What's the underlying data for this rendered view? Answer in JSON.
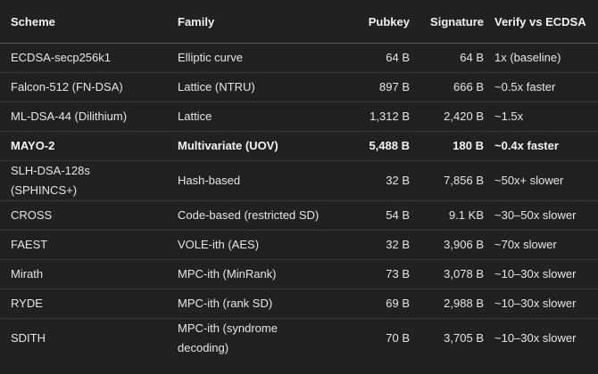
{
  "table": {
    "headers": {
      "scheme": "Scheme",
      "family": "Family",
      "pubkey": "Pubkey",
      "signature": "Signature",
      "verify": "Verify vs ECDSA"
    },
    "rows": [
      {
        "scheme": "ECDSA-secp256k1",
        "family": "Elliptic curve",
        "pubkey": "64 B",
        "signature": "64 B",
        "verify": "1x (baseline)",
        "bold": false
      },
      {
        "scheme": "Falcon-512 (FN-DSA)",
        "family": "Lattice (NTRU)",
        "pubkey": "897 B",
        "signature": "666 B",
        "verify": "~0.5x faster",
        "bold": false
      },
      {
        "scheme": "ML-DSA-44 (Dilithium)",
        "family": "Lattice",
        "pubkey": "1,312 B",
        "signature": "2,420 B",
        "verify": "~1.5x",
        "bold": false
      },
      {
        "scheme": "MAYO-2",
        "family": "Multivariate (UOV)",
        "pubkey": "5,488 B",
        "signature": "180 B",
        "verify": "~0.4x faster",
        "bold": true
      },
      {
        "scheme": "SLH-DSA-128s (SPHINCS+)",
        "family": "Hash-based",
        "pubkey": "32 B",
        "signature": "7,856 B",
        "verify": "~50x+ slower",
        "bold": false
      },
      {
        "scheme": "CROSS",
        "family": "Code-based (restricted SD)",
        "pubkey": "54 B",
        "signature": "9.1 KB",
        "verify": "~30–50x slower",
        "bold": false
      },
      {
        "scheme": "FAEST",
        "family": "VOLE-ith (AES)",
        "pubkey": "32 B",
        "signature": "3,906 B",
        "verify": "~70x slower",
        "bold": false
      },
      {
        "scheme": "Mirath",
        "family": "MPC-ith (MinRank)",
        "pubkey": "73 B",
        "signature": "3,078 B",
        "verify": "~10–30x slower",
        "bold": false
      },
      {
        "scheme": "RYDE",
        "family": "MPC-ith (rank SD)",
        "pubkey": "69 B",
        "signature": "2,988 B",
        "verify": "~10–30x slower",
        "bold": false
      },
      {
        "scheme": "SDITH",
        "family": "MPC-ith (syndrome decoding)",
        "pubkey": "70 B",
        "signature": "3,705 B",
        "verify": "~10–30x slower",
        "bold": false
      }
    ]
  }
}
